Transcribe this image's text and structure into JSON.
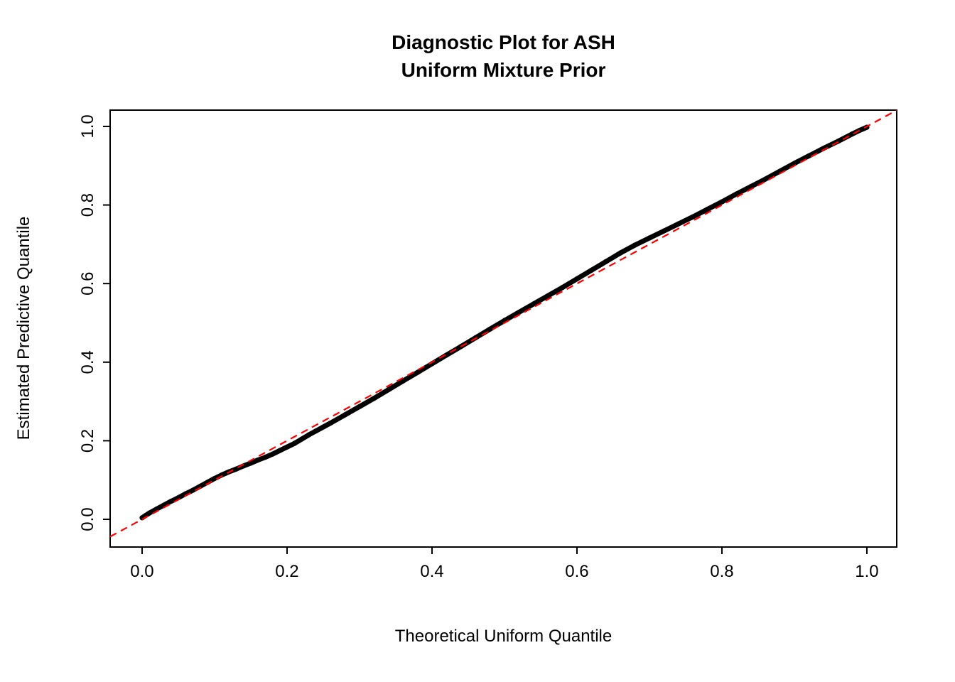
{
  "chart_data": {
    "type": "scatter",
    "title": "Diagnostic Plot for ASH",
    "subtitle": "Uniform Mixture Prior",
    "xlabel": "Theoretical Uniform Quantile",
    "ylabel": "Estimated Predictive Quantile",
    "xlim": [
      -0.0441,
      1.0412
    ],
    "ylim": [
      -0.0705,
      1.0415
    ],
    "grid": false,
    "x_tick_values": [
      0.0,
      0.2,
      0.4,
      0.6,
      0.8,
      1.0
    ],
    "x_tick_labels": [
      "0.0",
      "0.2",
      "0.4",
      "0.6",
      "0.8",
      "1.0"
    ],
    "y_tick_values": [
      0.0,
      0.2,
      0.4,
      0.6,
      0.8,
      1.0
    ],
    "y_tick_labels": [
      "0.0",
      "0.2",
      "0.4",
      "0.6",
      "0.8",
      "1.0"
    ],
    "colors": {
      "points": "#000000",
      "reference_line": "#ff0000",
      "box": "#000000",
      "background": "#ffffff"
    },
    "series": [
      {
        "name": "estimated-vs-theoretical-quantiles",
        "style": "thick-point-line",
        "color": "#000000",
        "points": [
          [
            0.0,
            0.004
          ],
          [
            0.005,
            0.01
          ],
          [
            0.01,
            0.016
          ],
          [
            0.02,
            0.026
          ],
          [
            0.03,
            0.036
          ],
          [
            0.04,
            0.046
          ],
          [
            0.05,
            0.055
          ],
          [
            0.06,
            0.065
          ],
          [
            0.07,
            0.074
          ],
          [
            0.08,
            0.084
          ],
          [
            0.09,
            0.094
          ],
          [
            0.1,
            0.104
          ],
          [
            0.11,
            0.113
          ],
          [
            0.12,
            0.121
          ],
          [
            0.13,
            0.128
          ],
          [
            0.14,
            0.136
          ],
          [
            0.15,
            0.143
          ],
          [
            0.16,
            0.151
          ],
          [
            0.17,
            0.158
          ],
          [
            0.18,
            0.166
          ],
          [
            0.19,
            0.175
          ],
          [
            0.2,
            0.184
          ],
          [
            0.21,
            0.193
          ],
          [
            0.22,
            0.204
          ],
          [
            0.23,
            0.215
          ],
          [
            0.24,
            0.225
          ],
          [
            0.25,
            0.235
          ],
          [
            0.26,
            0.245
          ],
          [
            0.28,
            0.266
          ],
          [
            0.3,
            0.287
          ],
          [
            0.32,
            0.308
          ],
          [
            0.34,
            0.33
          ],
          [
            0.36,
            0.352
          ],
          [
            0.38,
            0.374
          ],
          [
            0.4,
            0.396
          ],
          [
            0.42,
            0.418
          ],
          [
            0.44,
            0.44
          ],
          [
            0.46,
            0.462
          ],
          [
            0.48,
            0.484
          ],
          [
            0.5,
            0.506
          ],
          [
            0.52,
            0.527
          ],
          [
            0.54,
            0.548
          ],
          [
            0.56,
            0.569
          ],
          [
            0.58,
            0.59
          ],
          [
            0.6,
            0.612
          ],
          [
            0.62,
            0.634
          ],
          [
            0.64,
            0.656
          ],
          [
            0.66,
            0.678
          ],
          [
            0.68,
            0.698
          ],
          [
            0.7,
            0.716
          ],
          [
            0.72,
            0.734
          ],
          [
            0.74,
            0.752
          ],
          [
            0.76,
            0.77
          ],
          [
            0.78,
            0.789
          ],
          [
            0.8,
            0.808
          ],
          [
            0.82,
            0.828
          ],
          [
            0.84,
            0.847
          ],
          [
            0.86,
            0.866
          ],
          [
            0.88,
            0.886
          ],
          [
            0.9,
            0.906
          ],
          [
            0.92,
            0.925
          ],
          [
            0.94,
            0.944
          ],
          [
            0.96,
            0.962
          ],
          [
            0.98,
            0.981
          ],
          [
            0.99,
            0.99
          ],
          [
            1.0,
            0.998
          ]
        ]
      },
      {
        "name": "identity-reference-line",
        "style": "dashed",
        "color": "#ff0000",
        "points": [
          [
            -0.0441,
            -0.0441
          ],
          [
            1.0412,
            1.0412
          ]
        ]
      }
    ]
  }
}
